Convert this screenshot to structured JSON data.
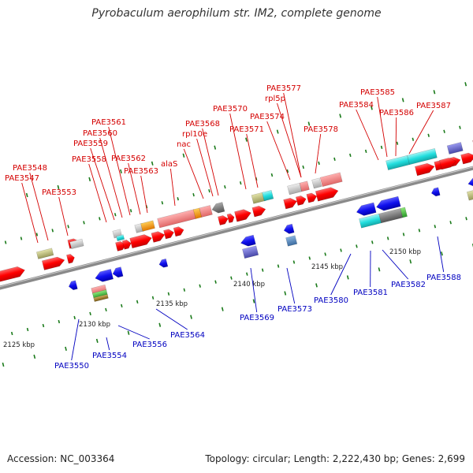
{
  "title": "Pyrobaculum aerophilum str. IM2, complete genome",
  "footer": {
    "accession": "Accession: NC_003364",
    "topology": "Topology: circular; Length: 2,222,430 bp; Genes: 2,699"
  },
  "colors": {
    "backbone": "#8a8a8a",
    "forward_label": "#d40000",
    "reverse_label": "#0000c0",
    "tick": "#1a7a1a"
  },
  "scale_labels": [
    "2125 kbp",
    "2130 kbp",
    "2135 kbp",
    "2140 kbp",
    "2145 kbp",
    "2150 kbp"
  ],
  "upper_labels": [
    "PAE3547",
    "PAE3548",
    "PAE3553",
    "PAE3558",
    "PAE3559",
    "PAE3560",
    "PAE3561",
    "PAE3562",
    "PAE3563",
    "alaS",
    "nac",
    "rpl10e",
    "PAE3568",
    "PAE3570",
    "PAE3571",
    "PAE3574",
    "rpl5p",
    "PAE3577",
    "PAE3578",
    "PAE3584",
    "PAE3585",
    "PAE3586",
    "PAE3587"
  ],
  "lower_labels": [
    "PAE3550",
    "PAE3554",
    "PAE3556",
    "PAE3564",
    "PAE3569",
    "PAE3573",
    "PAE3580",
    "PAE3581",
    "PAE3582",
    "PAE3588"
  ]
}
